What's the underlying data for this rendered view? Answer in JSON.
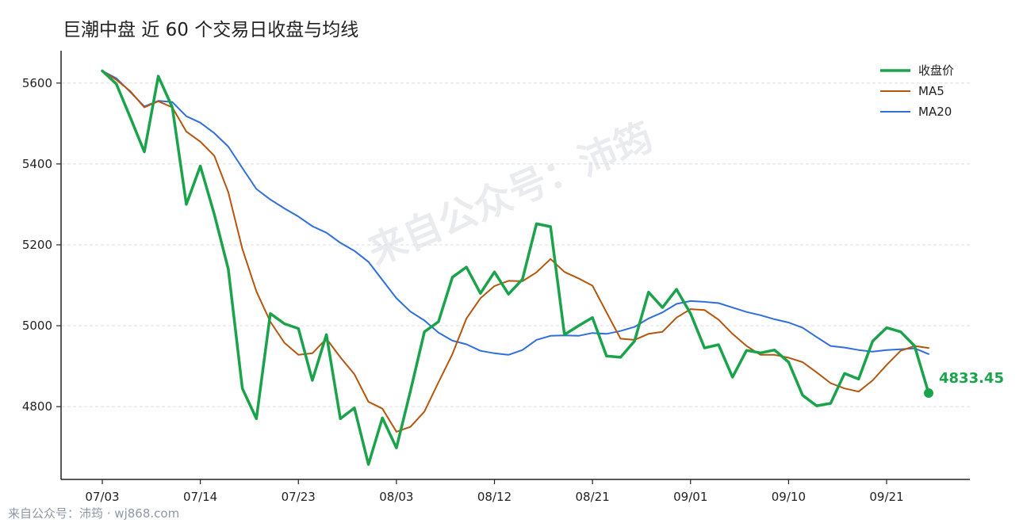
{
  "chart_data": {
    "type": "line",
    "title": "巨潮中盘 近 60 个交易日收盘与均线",
    "xlabel": "",
    "ylabel": "",
    "ylim": [
      4620,
      5680
    ],
    "yticks": [
      4800,
      5000,
      5200,
      5400,
      5600
    ],
    "x_tick_labels": [
      {
        "index": 0,
        "label": "07/03"
      },
      {
        "index": 7,
        "label": "07/14"
      },
      {
        "index": 14,
        "label": "07/23"
      },
      {
        "index": 21,
        "label": "08/03"
      },
      {
        "index": 28,
        "label": "08/12"
      },
      {
        "index": 35,
        "label": "08/21"
      },
      {
        "index": 42,
        "label": "09/01"
      },
      {
        "index": 49,
        "label": "09/10"
      },
      {
        "index": 56,
        "label": "09/21"
      }
    ],
    "grid": "horizontal dashed",
    "legend_position": "top-right",
    "series": [
      {
        "name": "收盘价",
        "color": "#1aa34a",
        "values": [
          5630,
          5598,
          5515,
          5430,
          5617,
          5540,
          5300,
          5395,
          5275,
          5140,
          4845,
          4770,
          5030,
          5005,
          4993,
          4865,
          4978,
          4770,
          4797,
          4657,
          4772,
          4698,
          4838,
          4985,
          5010,
          5120,
          5145,
          5080,
          5133,
          5078,
          5115,
          5252,
          5245,
          4978,
          5000,
          5020,
          4925,
          4922,
          4962,
          5083,
          5045,
          5090,
          5030,
          4945,
          4953,
          4873,
          4939,
          4933,
          4940,
          4910,
          4828,
          4802,
          4808,
          4882,
          4868,
          4962,
          4995,
          4985,
          4950,
          4833.45
        ]
      },
      {
        "name": "MA5",
        "color": "#b5560e",
        "values": [
          5630,
          5608,
          5580,
          5540,
          5555,
          5540,
          5480,
          5455,
          5420,
          5330,
          5190,
          5085,
          5010,
          4958,
          4928,
          4932,
          4968,
          4922,
          4880,
          4812,
          4795,
          4738,
          4750,
          4788,
          4860,
          4930,
          5018,
          5068,
          5098,
          5111,
          5110,
          5132,
          5165,
          5133,
          5117,
          5099,
          5033,
          4968,
          4965,
          4980,
          4985,
          5020,
          5041,
          5039,
          5015,
          4980,
          4950,
          4928,
          4928,
          4921,
          4910,
          4885,
          4858,
          4845,
          4837,
          4865,
          4903,
          4938,
          4950,
          4945
        ]
      },
      {
        "name": "MA20",
        "color": "#2f6fdc",
        "values": [
          5630,
          5612,
          5578,
          5542,
          5556,
          5553,
          5518,
          5502,
          5476,
          5443,
          5390,
          5338,
          5312,
          5290,
          5270,
          5246,
          5230,
          5205,
          5185,
          5158,
          5113,
          5068,
          5035,
          5013,
          4983,
          4963,
          4954,
          4938,
          4932,
          4928,
          4940,
          4965,
          4975,
          4976,
          4975,
          4982,
          4980,
          4987,
          4997,
          5018,
          5033,
          5054,
          5061,
          5059,
          5056,
          5045,
          5034,
          5026,
          5016,
          5008,
          4995,
          4972,
          4950,
          4946,
          4940,
          4936,
          4940,
          4942,
          4944,
          4930
        ]
      }
    ],
    "last_point_label": "4833.45"
  },
  "watermark": "来自公众号：沛筠",
  "footer": "来自公众号：沛筠 · wj868.com"
}
